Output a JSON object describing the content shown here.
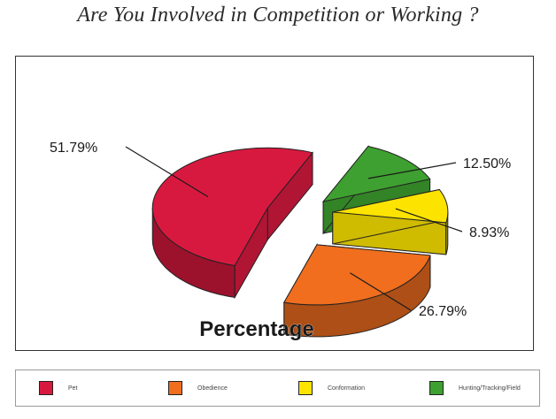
{
  "chart_data": {
    "type": "pie",
    "title": "Are You Involved in Competition or Working ?",
    "axis_label": "Percentage",
    "legend_position": "bottom",
    "categories": [
      "Pet",
      "Obedience",
      "Conformation",
      "Hunting/Tracking/Field"
    ],
    "values": [
      51.79,
      26.79,
      8.93,
      12.5
    ],
    "data_labels": [
      "51.79%",
      "26.79%",
      "8.93%",
      "12.50%"
    ],
    "colors": [
      "#d8193f",
      "#f06e1e",
      "#fce400",
      "#3ea030"
    ],
    "exploded": true,
    "three_d": true
  }
}
